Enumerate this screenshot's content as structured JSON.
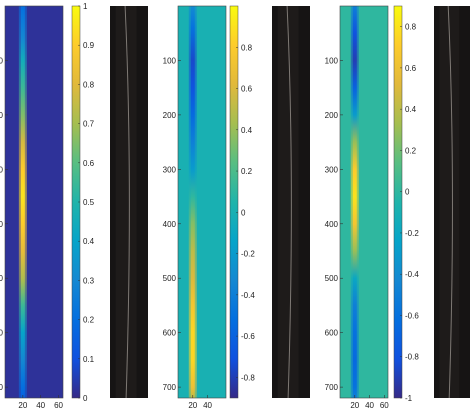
{
  "chart_data": [
    {
      "type": "heatmap",
      "title": "",
      "xlabel": "",
      "ylabel": "",
      "x_ticks": [
        "20",
        "40",
        "60"
      ],
      "y_ticks": [
        "100",
        "200",
        "300",
        "400",
        "500",
        "600",
        "700"
      ],
      "xlim": [
        0,
        65
      ],
      "ylim": [
        0,
        720
      ],
      "colorbar": {
        "range": [
          0,
          1
        ],
        "ticks": [
          "0",
          "0.1",
          "0.2",
          "0.3",
          "0.4",
          "0.5",
          "0.6",
          "0.7",
          "0.8",
          "0.9",
          "1"
        ]
      },
      "background_value": 0.02,
      "profile_y": [
        0,
        30,
        60,
        100,
        150,
        200,
        250,
        300,
        350,
        400,
        450,
        500,
        550,
        600,
        650,
        700,
        720
      ],
      "profile_values": [
        0.2,
        0.25,
        0.3,
        0.45,
        0.55,
        0.65,
        0.78,
        0.9,
        0.95,
        0.9,
        0.82,
        0.72,
        0.55,
        0.4,
        0.3,
        0.2,
        0.15
      ],
      "image_panel": "grayscale-strip-image"
    },
    {
      "type": "heatmap",
      "title": "",
      "xlabel": "",
      "ylabel": "",
      "x_ticks": [
        "20",
        "40"
      ],
      "y_ticks": [
        "100",
        "200",
        "300",
        "400",
        "500",
        "600",
        "700"
      ],
      "xlim": [
        0,
        65
      ],
      "ylim": [
        0,
        720
      ],
      "colorbar": {
        "range": [
          -0.9,
          1
        ],
        "ticks": [
          "-0.8",
          "-0.6",
          "-0.4",
          "-0.2",
          "0",
          "0.2",
          "0.4",
          "0.6",
          "0.8"
        ]
      },
      "background_value": 0.0,
      "profile_y": [
        0,
        40,
        100,
        150,
        200,
        250,
        300,
        350,
        400,
        450,
        500,
        550,
        600,
        650,
        700,
        720
      ],
      "profile_values": [
        -0.3,
        -0.5,
        -0.75,
        -0.7,
        -0.55,
        -0.4,
        -0.2,
        0.1,
        0.35,
        0.5,
        0.6,
        0.75,
        0.85,
        0.85,
        0.7,
        0.5
      ],
      "image_panel": "grayscale-strip-image"
    },
    {
      "type": "heatmap",
      "title": "",
      "xlabel": "",
      "ylabel": "",
      "x_ticks": [
        "20",
        "40",
        "60"
      ],
      "y_ticks": [
        "100",
        "200",
        "300",
        "400",
        "500",
        "600",
        "700"
      ],
      "xlim": [
        0,
        65
      ],
      "ylim": [
        0,
        720
      ],
      "colorbar": {
        "range": [
          -1,
          0.9
        ],
        "ticks": [
          "-1",
          "-0.8",
          "-0.6",
          "-0.4",
          "-0.2",
          "0",
          "0.2",
          "0.4",
          "0.6",
          "0.8"
        ]
      },
      "background_value": 0.0,
      "profile_y": [
        0,
        50,
        100,
        150,
        200,
        250,
        300,
        350,
        400,
        450,
        500,
        550,
        600,
        650,
        700,
        720
      ],
      "profile_values": [
        -0.5,
        -0.8,
        -0.9,
        -0.7,
        -0.3,
        0.3,
        0.7,
        0.8,
        0.65,
        0.3,
        -0.2,
        -0.5,
        -0.6,
        -0.65,
        -0.6,
        -0.5
      ],
      "image_panel": "grayscale-strip-image"
    }
  ]
}
